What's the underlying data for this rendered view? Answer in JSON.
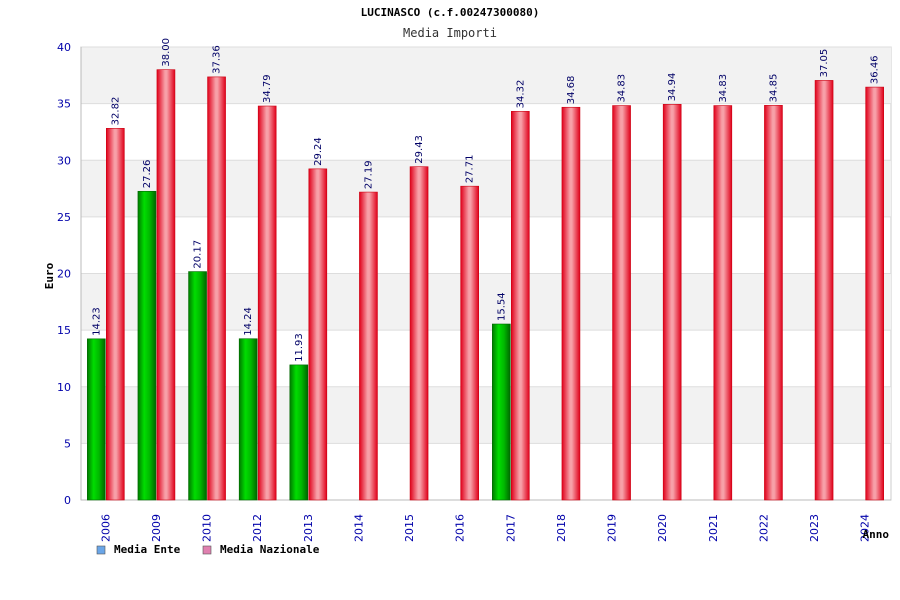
{
  "chart_data": {
    "type": "bar",
    "title": "LUCINASCO (c.f.00247300080)",
    "subtitle": "Media Importi",
    "xlabel": "Anno",
    "ylabel": "Euro",
    "ylim": [
      0,
      40
    ],
    "yticks": [
      0,
      5,
      10,
      15,
      20,
      25,
      30,
      35,
      40
    ],
    "grid": true,
    "legend_position": "bottom-left",
    "categories": [
      "2006",
      "2009",
      "2010",
      "2012",
      "2013",
      "2014",
      "2015",
      "2016",
      "2017",
      "2018",
      "2019",
      "2020",
      "2021",
      "2022",
      "2023",
      "2024"
    ],
    "series": [
      {
        "name": "Media Ente",
        "color": "#00aa00",
        "legend_color": "#6aa6e8",
        "values": [
          14.23,
          27.26,
          20.17,
          14.24,
          11.93,
          null,
          null,
          null,
          15.54,
          null,
          null,
          null,
          null,
          null,
          null,
          null
        ],
        "labels": [
          "14.23",
          "27.26",
          "20.17",
          "14.24",
          "11.93",
          "",
          "",
          "",
          "15.54",
          "",
          "",
          "",
          "",
          "",
          "",
          ""
        ]
      },
      {
        "name": "Media Nazionale",
        "color": "#ee1122",
        "legend_color": "#e080b0",
        "values": [
          32.82,
          38.0,
          37.36,
          34.79,
          29.24,
          27.19,
          29.43,
          27.71,
          34.32,
          34.68,
          34.83,
          34.94,
          34.83,
          34.85,
          37.05,
          36.46
        ],
        "labels": [
          "32.82",
          "38.00",
          "37.36",
          "34.79",
          "29.24",
          "27.19",
          "29.43",
          "27.71",
          "34.32",
          "34.68",
          "34.83",
          "34.94",
          "34.83",
          "34.85",
          "37.05",
          "36.46"
        ]
      }
    ]
  }
}
